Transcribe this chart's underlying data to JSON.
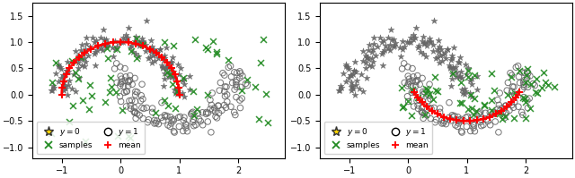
{
  "seed": 42,
  "star_color": "#666666",
  "circle_edgecolor": "#666666",
  "sample_color": "#228B22",
  "mean_color": "#FF0000",
  "legend_star_facecolor": "#FFD700",
  "legend_star_edgecolor": "#333333",
  "background_color": "#ffffff",
  "figsize": [
    6.4,
    1.99
  ],
  "dpi": 100,
  "xlim": [
    -1.5,
    2.8
  ],
  "ylim": [
    -1.2,
    1.75
  ],
  "n_data": 300,
  "noise": 0.12,
  "n_green": 60,
  "legend_fontsize": 6.5,
  "tick_labelsize": 7
}
